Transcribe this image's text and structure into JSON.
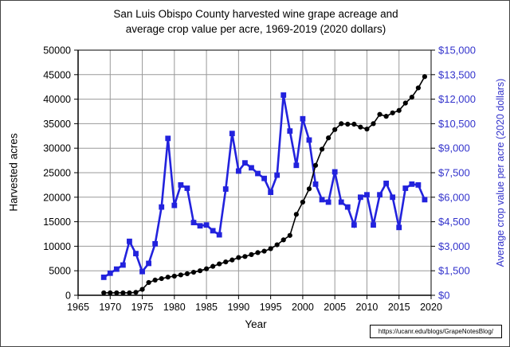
{
  "source_url": "https://ucanr.edu/blogs/GrapeNotesBlog/",
  "colors": {
    "grid": "#999999",
    "axis_black": "#000000",
    "accent_blue_text": "#3333cc",
    "accent_blue_line": "#2222dd"
  },
  "chart_data": {
    "type": "line",
    "title_line1": "San Luis Obispo County harvested wine grape acreage and",
    "title_line2": "average crop value per acre, 1969-2019 (2020 dollars)",
    "xlabel": "Year",
    "ylabel_left": "Harvested acres",
    "ylabel_right": "Average crop value per acre (2020 dollars)",
    "grid": true,
    "legend": "none",
    "x_axis": {
      "min": 1965,
      "max": 2020,
      "tick_step": 5,
      "tick_labels": [
        "1965",
        "1970",
        "1975",
        "1980",
        "1985",
        "1990",
        "1995",
        "2000",
        "2005",
        "2010",
        "2015",
        "2020"
      ]
    },
    "y_left": {
      "min": 0,
      "max": 50000,
      "tick_step": 5000,
      "tick_labels": [
        "0",
        "5000",
        "10000",
        "15000",
        "20000",
        "25000",
        "30000",
        "35000",
        "40000",
        "45000",
        "50000"
      ]
    },
    "y_right": {
      "min": 0,
      "max": 15000,
      "tick_step": 1500,
      "tick_labels": [
        "$0",
        "$1,500",
        "$3,000",
        "$4,500",
        "$6,000",
        "$7,500",
        "$9,000",
        "$10,500",
        "$12,000",
        "$13,500",
        "$15,000"
      ]
    },
    "years": [
      1969,
      1970,
      1971,
      1972,
      1973,
      1974,
      1975,
      1976,
      1977,
      1978,
      1979,
      1980,
      1981,
      1982,
      1983,
      1984,
      1985,
      1986,
      1987,
      1988,
      1989,
      1990,
      1991,
      1992,
      1993,
      1994,
      1995,
      1996,
      1997,
      1998,
      1999,
      2000,
      2001,
      2002,
      2003,
      2004,
      2005,
      2006,
      2007,
      2008,
      2009,
      2010,
      2011,
      2012,
      2013,
      2014,
      2015,
      2016,
      2017,
      2018,
      2019
    ],
    "series": [
      {
        "name": "Average crop value per acre (2020 dollars)",
        "axis": "right",
        "color": "#2222dd",
        "marker": "square",
        "values": [
          1100,
          1350,
          1600,
          1850,
          3300,
          2550,
          1450,
          1950,
          3150,
          5400,
          9600,
          5500,
          6750,
          6550,
          4450,
          4250,
          4300,
          3950,
          3700,
          6500,
          9900,
          7600,
          8100,
          7800,
          7450,
          7150,
          6300,
          7350,
          12250,
          10050,
          7950,
          10800,
          9500,
          6800,
          5850,
          5700,
          7550,
          5700,
          5400,
          4300,
          6000,
          6150,
          4300,
          6150,
          6850,
          6000,
          4150,
          6550,
          6800,
          6750,
          5850
        ]
      },
      {
        "name": "Harvested acres",
        "axis": "left",
        "color": "#000000",
        "marker": "circle",
        "values": [
          500,
          500,
          500,
          500,
          500,
          600,
          1200,
          2600,
          3100,
          3400,
          3700,
          3900,
          4150,
          4400,
          4700,
          5000,
          5400,
          5900,
          6400,
          6800,
          7200,
          7700,
          7900,
          8300,
          8700,
          9000,
          9500,
          10300,
          11300,
          12200,
          16500,
          19000,
          21700,
          26500,
          29800,
          32100,
          33800,
          35000,
          34900,
          34900,
          34300,
          33900,
          35000,
          36900,
          36500,
          37200,
          37700,
          39200,
          40400,
          42300,
          44600
        ]
      }
    ]
  }
}
